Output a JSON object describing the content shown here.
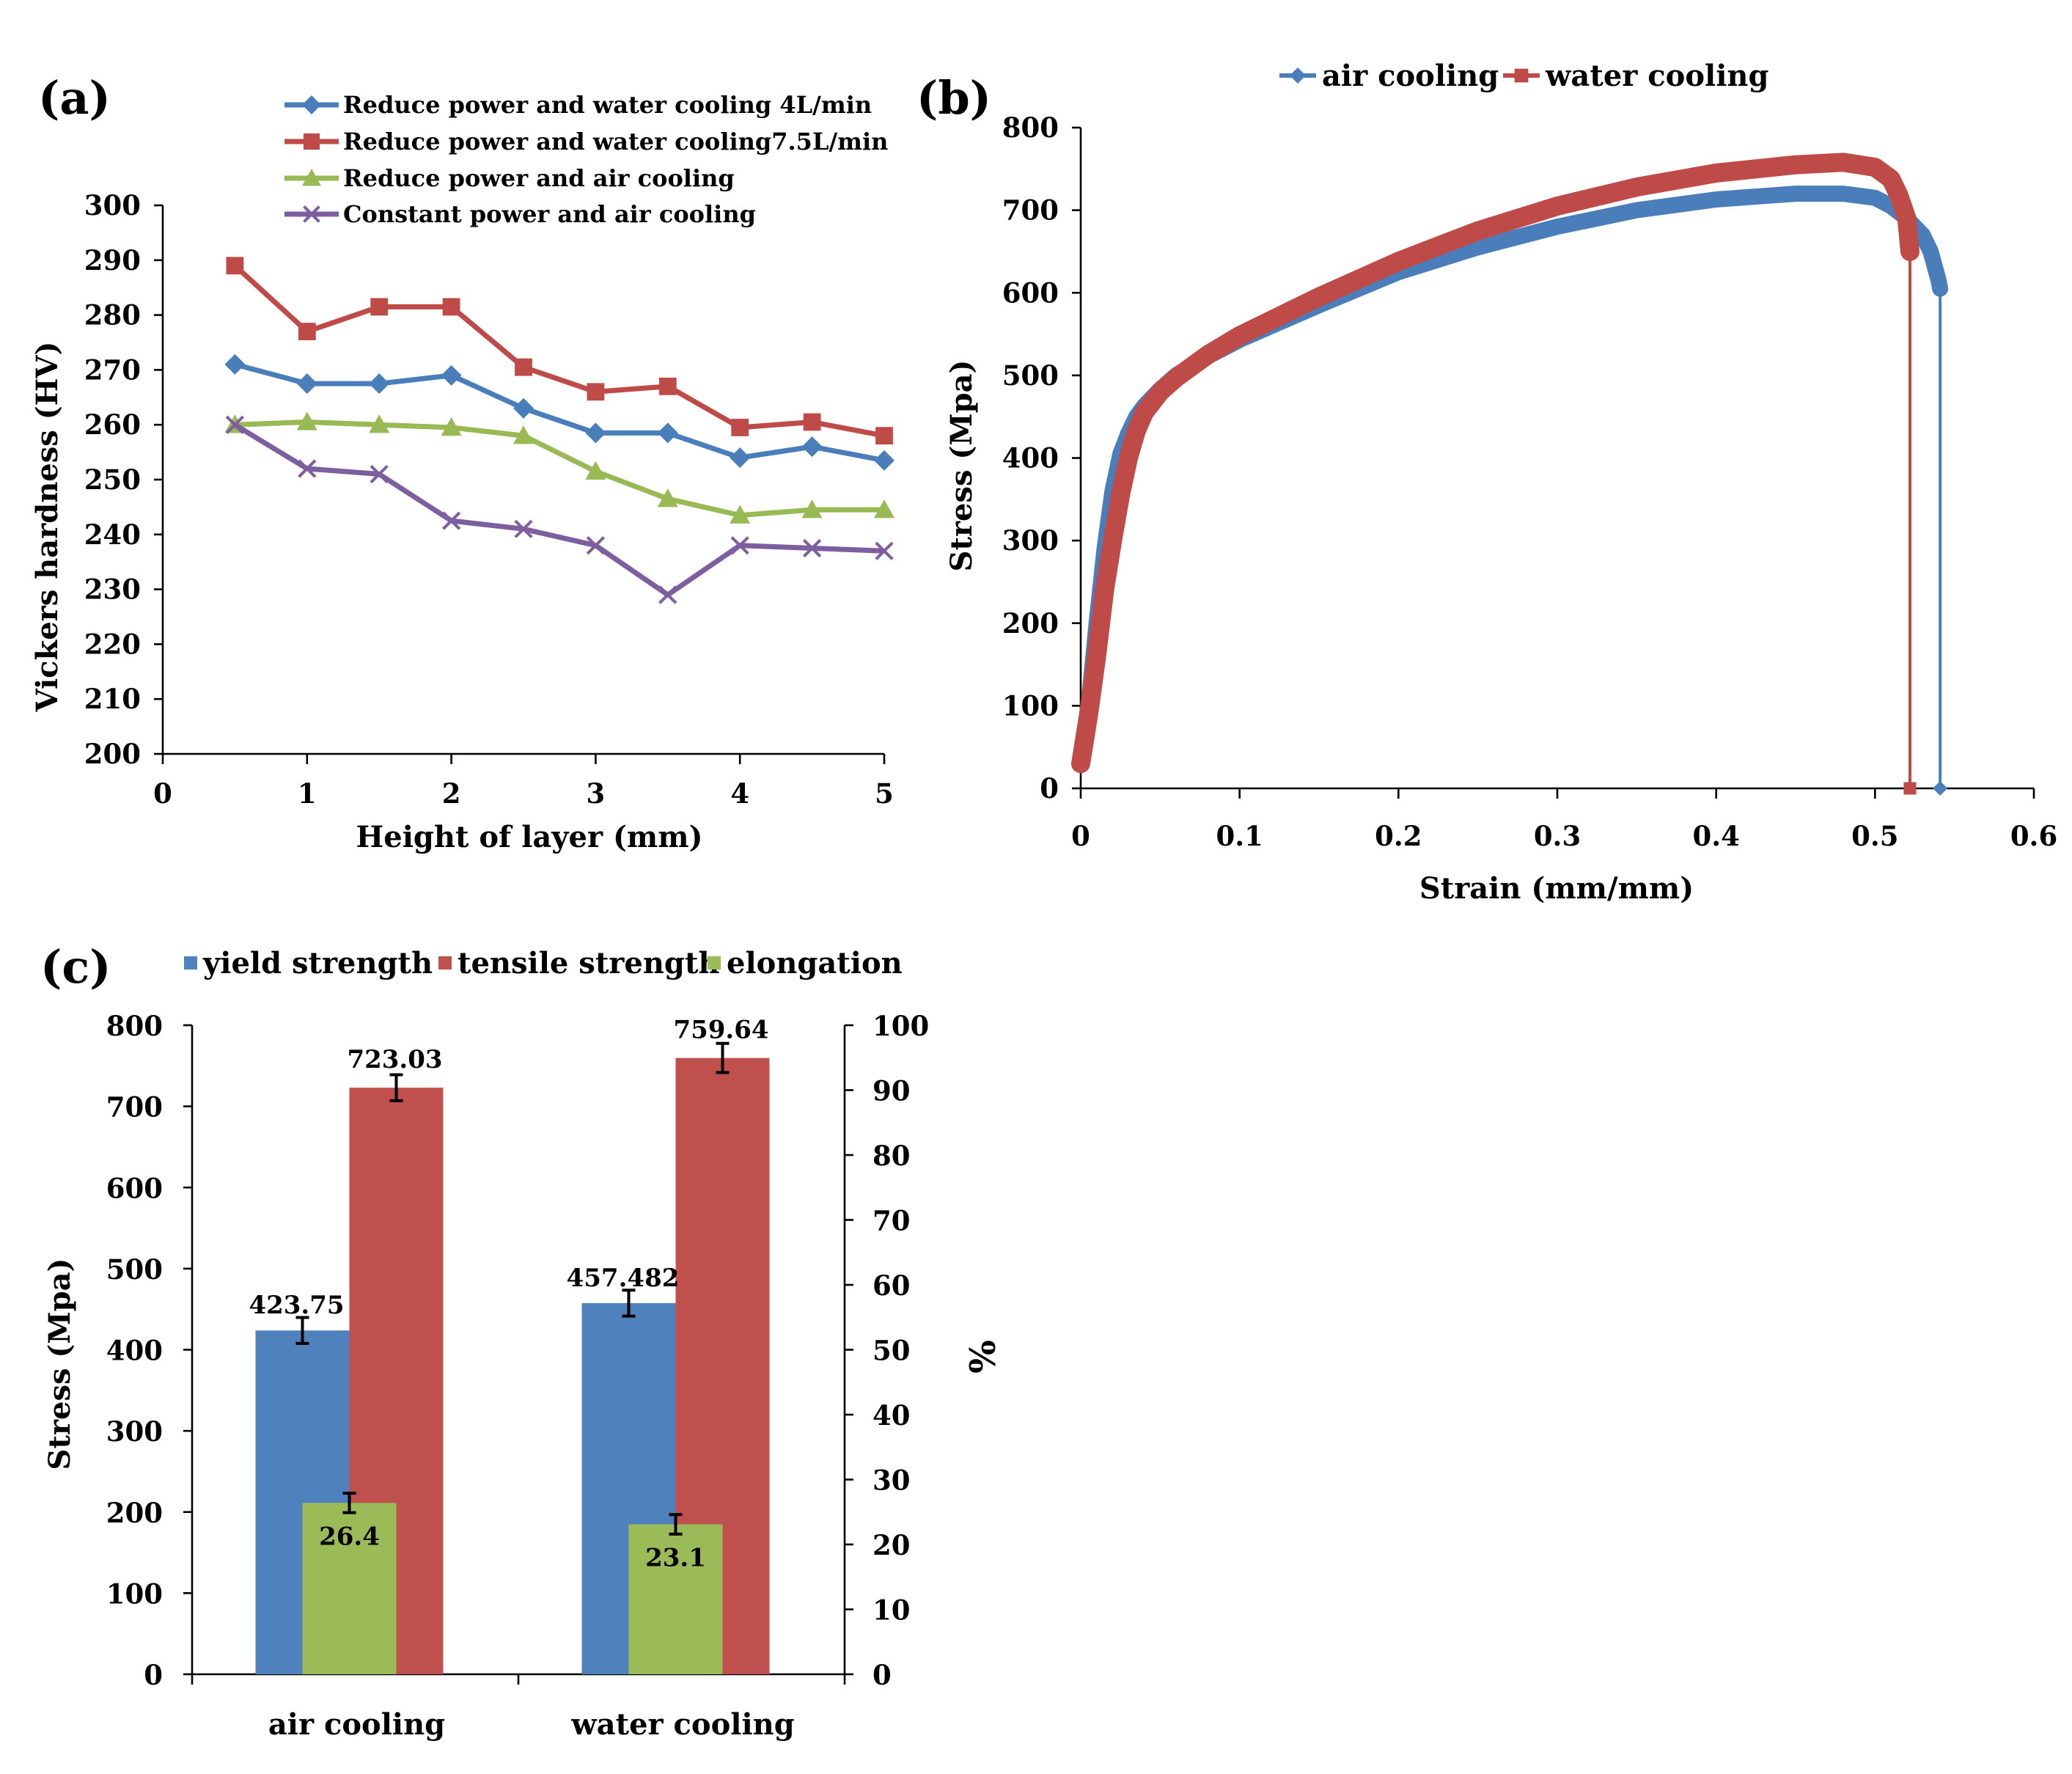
{
  "chart_data": [
    {
      "panel": "(a)",
      "type": "line",
      "xlabel": "Height of layer (mm)",
      "ylabel": "Vickers hardness  (HV)",
      "xlim": [
        0,
        5
      ],
      "ylim": [
        200,
        300
      ],
      "x_ticks": [
        "0",
        "1",
        "2",
        "3",
        "4",
        "5"
      ],
      "y_ticks": [
        "200",
        "210",
        "220",
        "230",
        "240",
        "250",
        "260",
        "270",
        "280",
        "290",
        "300"
      ],
      "x": [
        0.5,
        1,
        1.5,
        2,
        2.5,
        3,
        3.5,
        4,
        4.5,
        5
      ],
      "series": [
        {
          "name": "Reduce power and water cooling 4L/min",
          "color": "#4a7ebb",
          "marker": "diamond",
          "values": [
            271,
            267.5,
            267.5,
            269,
            263,
            258.5,
            258.5,
            254,
            256,
            253.5
          ]
        },
        {
          "name": "Reduce power and water cooling7.5L/min",
          "color": "#be4b48",
          "marker": "square",
          "values": [
            289,
            277,
            281.5,
            281.5,
            270.5,
            266,
            267,
            259.5,
            260.5,
            258
          ]
        },
        {
          "name": "Reduce power and air cooling",
          "color": "#98b954",
          "marker": "triangle",
          "values": [
            260,
            260.5,
            260,
            259.5,
            258,
            251.5,
            246.5,
            243.5,
            244.5,
            244.5
          ]
        },
        {
          "name": "Constant power and air cooling",
          "color": "#7d5fa0",
          "marker": "x",
          "values": [
            260,
            252,
            251,
            242.5,
            241,
            238,
            229,
            238,
            237.5,
            237
          ]
        }
      ]
    },
    {
      "panel": "(b)",
      "type": "line",
      "xlabel": "Strain (mm/mm)",
      "ylabel": "Stress (Mpa)",
      "xlim": [
        0,
        0.6
      ],
      "ylim": [
        0,
        800
      ],
      "x_ticks": [
        "0",
        "0.1",
        "0.2",
        "0.3",
        "0.4",
        "0.5",
        "0.6"
      ],
      "y_ticks": [
        "0",
        "100",
        "200",
        "300",
        "400",
        "500",
        "600",
        "700",
        "800"
      ],
      "series": [
        {
          "name": "air cooling",
          "color": "#4a7ebb",
          "marker": "diamond",
          "x": [
            0,
            0.005,
            0.01,
            0.015,
            0.02,
            0.025,
            0.03,
            0.035,
            0.04,
            0.05,
            0.06,
            0.08,
            0.1,
            0.15,
            0.2,
            0.25,
            0.3,
            0.35,
            0.4,
            0.45,
            0.48,
            0.5,
            0.51,
            0.52,
            0.53,
            0.535,
            0.54,
            0.541,
            0.541
          ],
          "y": [
            30,
            100,
            200,
            290,
            360,
            405,
            430,
            450,
            463,
            483,
            500,
            523,
            543,
            585,
            625,
            655,
            680,
            700,
            713,
            720,
            720,
            715,
            705,
            690,
            670,
            650,
            615,
            605,
            0
          ]
        },
        {
          "name": "water cooling",
          "color": "#be4b48",
          "marker": "square",
          "x": [
            0,
            0.005,
            0.01,
            0.015,
            0.02,
            0.025,
            0.03,
            0.035,
            0.04,
            0.05,
            0.06,
            0.08,
            0.1,
            0.15,
            0.2,
            0.25,
            0.3,
            0.35,
            0.4,
            0.45,
            0.48,
            0.5,
            0.51,
            0.515,
            0.52,
            0.522,
            0.522
          ],
          "y": [
            30,
            90,
            160,
            240,
            300,
            355,
            400,
            433,
            455,
            480,
            497,
            525,
            548,
            595,
            638,
            675,
            705,
            728,
            745,
            755,
            758,
            752,
            738,
            718,
            690,
            650,
            0
          ]
        }
      ]
    },
    {
      "panel": "(c)",
      "type": "bar",
      "categories": [
        "air cooling",
        "water cooling"
      ],
      "ylabel": "Stress (Mpa)",
      "y2label": "%",
      "ylim": [
        0,
        800
      ],
      "y2lim": [
        0,
        100
      ],
      "y_ticks": [
        "0",
        "100",
        "200",
        "300",
        "400",
        "500",
        "600",
        "700",
        "800"
      ],
      "y2_ticks": [
        "0",
        "10",
        "20",
        "30",
        "40",
        "50",
        "60",
        "70",
        "80",
        "90",
        "100"
      ],
      "series": [
        {
          "name": "yield strength",
          "color": "#4f81bd",
          "axis": "left",
          "values": [
            423.75,
            457.482
          ],
          "labels": [
            "423.75",
            "457.482"
          ],
          "error": [
            16,
            16
          ]
        },
        {
          "name": "tensile strength",
          "color": "#c0504d",
          "axis": "left",
          "values": [
            723.03,
            759.64
          ],
          "labels": [
            "723.03",
            "759.64"
          ],
          "error": [
            16,
            18
          ]
        },
        {
          "name": "elongation",
          "color": "#9bbb59",
          "axis": "right",
          "values": [
            26.4,
            23.1
          ],
          "labels": [
            "26.4",
            "23.1"
          ],
          "error": [
            1.5,
            1.5
          ]
        }
      ]
    }
  ]
}
